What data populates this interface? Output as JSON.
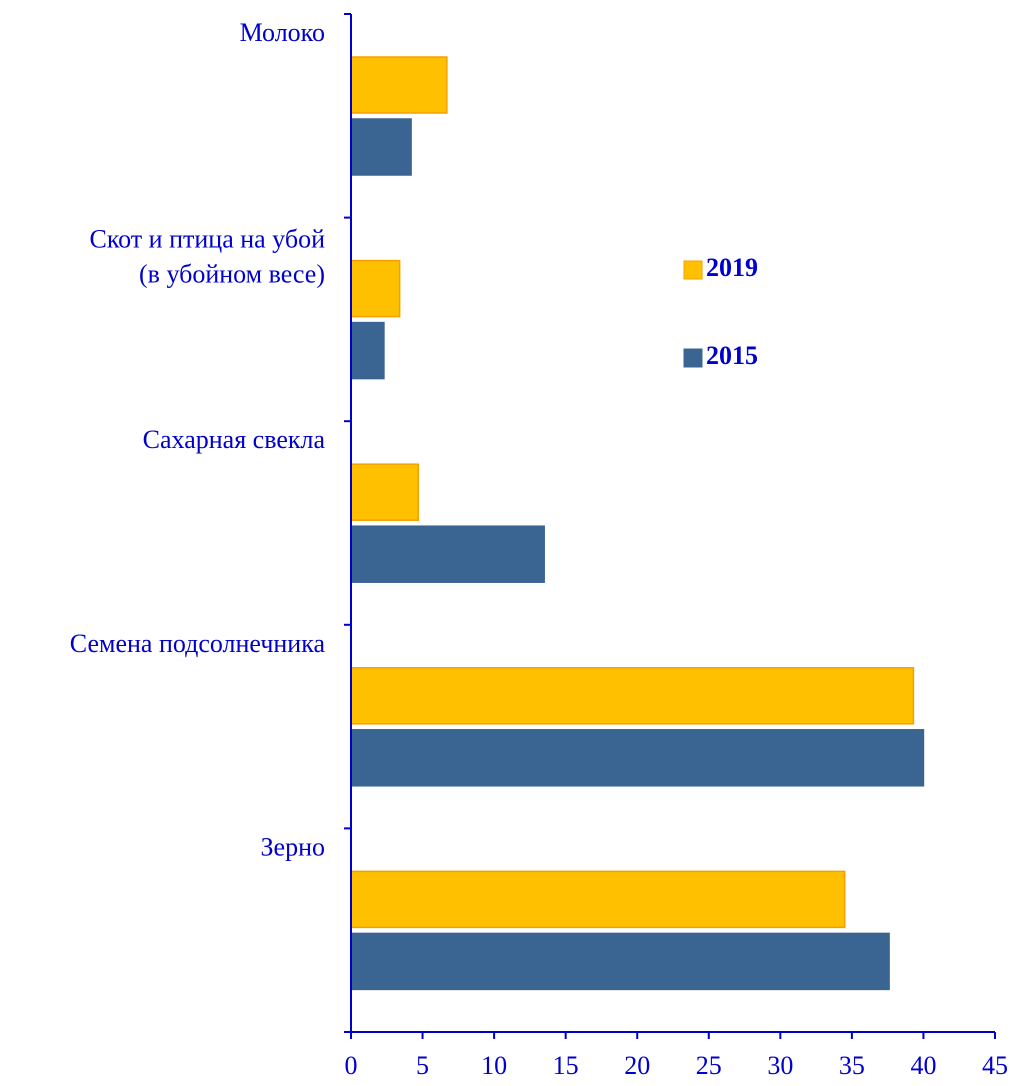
{
  "chart_data": {
    "type": "hbar",
    "categories": [
      "Молоко",
      "Скот и птица на убой\n(в убойном весе)",
      "Сахарная свекла",
      "Семена подсолнечника",
      "Зерно"
    ],
    "series": [
      {
        "name": "2019",
        "color": "#FFC000",
        "values": [
          6.7,
          3.4,
          4.7,
          39.3,
          34.5
        ]
      },
      {
        "name": "2015",
        "color": "#3A6491",
        "values": [
          4.2,
          2.3,
          13.5,
          40.0,
          37.6
        ]
      }
    ],
    "xlim": [
      0,
      45
    ],
    "xticks": [
      0,
      5,
      10,
      15,
      20,
      25,
      30,
      35,
      40,
      45
    ],
    "grid": false,
    "legend": "right"
  }
}
